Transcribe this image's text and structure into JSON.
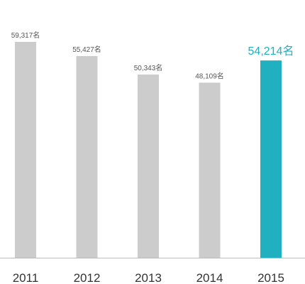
{
  "chart_data": {
    "type": "bar",
    "categories": [
      "2011",
      "2012",
      "2013",
      "2014",
      "2015"
    ],
    "values": [
      59317,
      55427,
      50343,
      48109,
      54214
    ],
    "data_labels": [
      "59,317名",
      "55,427名",
      "50,343名",
      "48,109名",
      "54,214名"
    ],
    "highlight_index": 4,
    "title": "",
    "xlabel": "",
    "ylabel": "",
    "ylim": [
      0,
      60000
    ],
    "grid": false,
    "legend": "none",
    "colors": {
      "bar": "#cccccc",
      "highlight": "#20b0c0",
      "label": "#555555",
      "highlight_label": "#20b0c0",
      "baseline": "#bbbbbb",
      "tick_label": "#333333"
    }
  }
}
